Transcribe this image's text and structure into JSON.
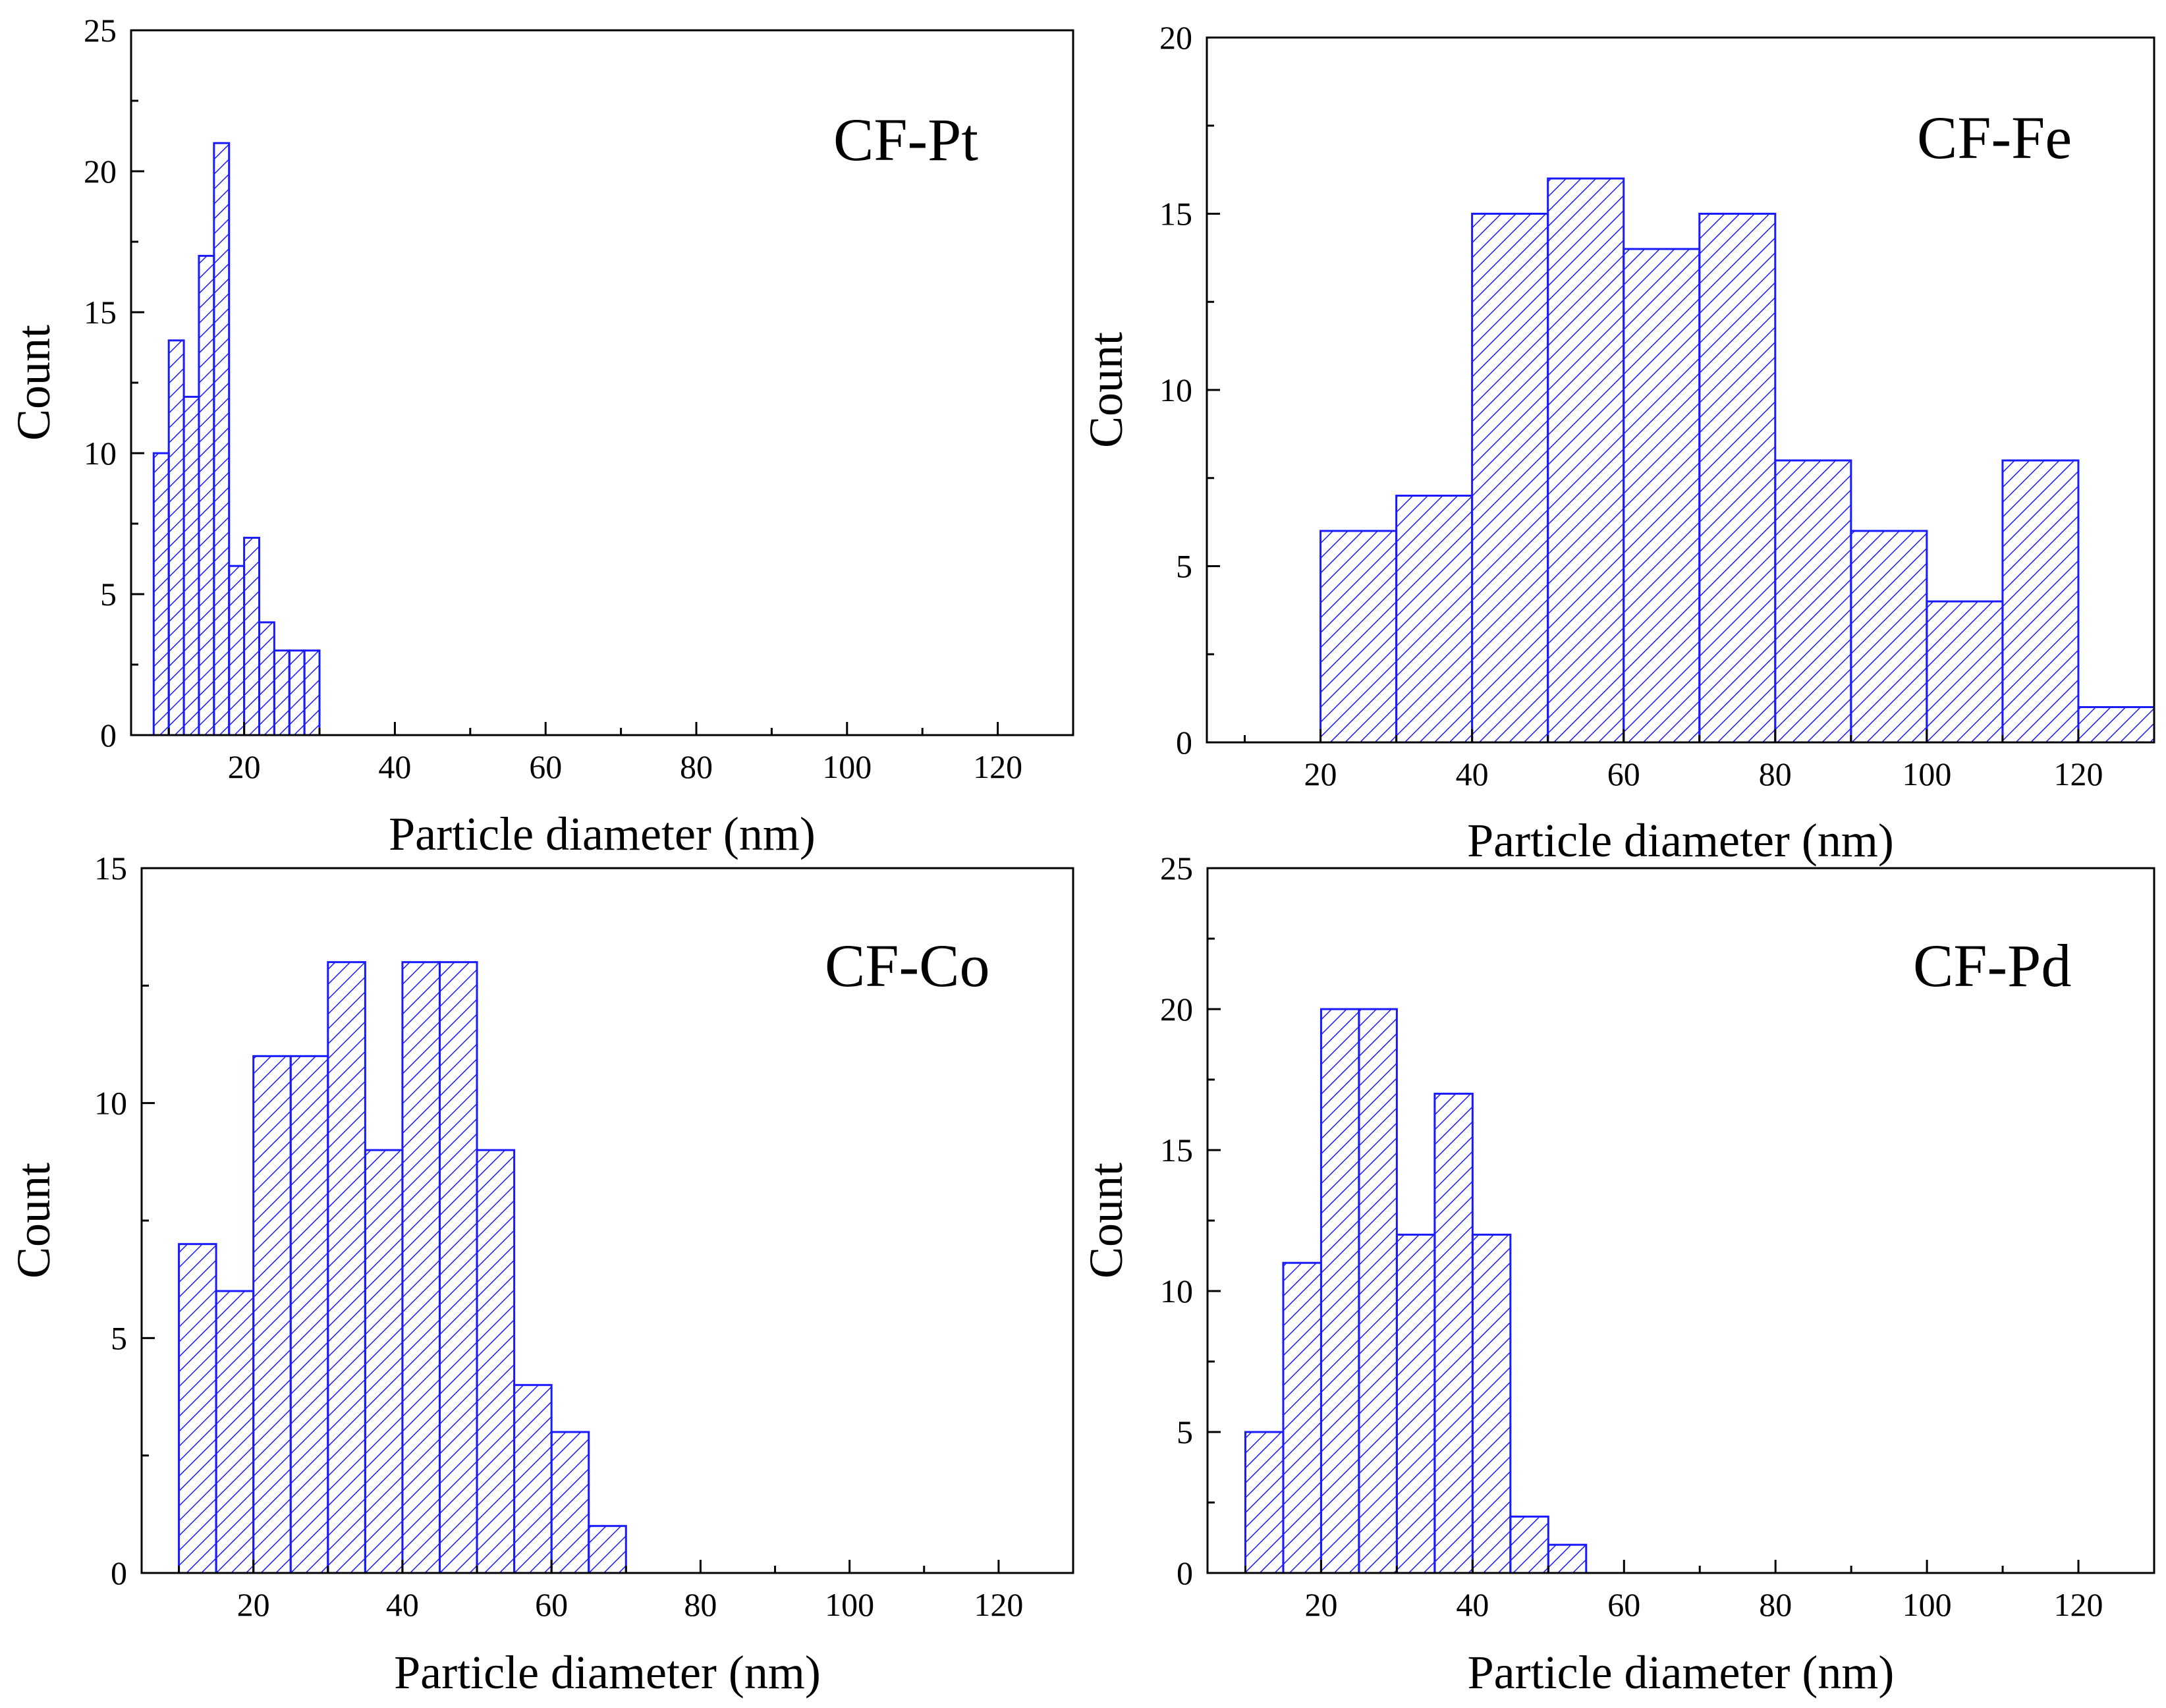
{
  "colors": {
    "bar_stroke": "#1a1aff",
    "hatch": "#1a1aff",
    "axis": "#000000",
    "background": "#ffffff"
  },
  "chart_data": [
    {
      "id": "cf-pt",
      "type": "bar",
      "title": "CF-Pt",
      "xlabel": "Particle diameter (nm)",
      "ylabel": "Count",
      "xlim": [
        5,
        130
      ],
      "ylim": [
        0,
        25
      ],
      "xticks": [
        20,
        40,
        60,
        80,
        100,
        120
      ],
      "xtick_labels": [
        "20",
        "40",
        "60",
        "80",
        "100",
        "120"
      ],
      "yticks": [
        0,
        5,
        10,
        15,
        20,
        25
      ],
      "ytick_labels": [
        "0",
        "5",
        "10",
        "15",
        "20",
        "25"
      ],
      "bins": [
        [
          8,
          10
        ],
        [
          10,
          12
        ],
        [
          12,
          14
        ],
        [
          14,
          16
        ],
        [
          16,
          18
        ],
        [
          18,
          20
        ],
        [
          20,
          22
        ],
        [
          22,
          24
        ],
        [
          24,
          26
        ],
        [
          26,
          28
        ],
        [
          28,
          30
        ]
      ],
      "values": [
        10,
        14,
        12,
        17,
        21,
        6,
        7,
        4,
        3,
        3,
        3
      ]
    },
    {
      "id": "cf-fe",
      "type": "bar",
      "title": "CF-Fe",
      "xlabel": "Particle diameter (nm)",
      "ylabel": "Count",
      "xlim": [
        5,
        130
      ],
      "ylim": [
        0,
        20
      ],
      "xticks": [
        20,
        40,
        60,
        80,
        100,
        120
      ],
      "xtick_labels": [
        "20",
        "40",
        "60",
        "80",
        "100",
        "120"
      ],
      "yticks": [
        0,
        5,
        10,
        15,
        20
      ],
      "ytick_labels": [
        "0",
        "5",
        "10",
        "15",
        "20"
      ],
      "bins": [
        [
          20,
          30
        ],
        [
          30,
          40
        ],
        [
          40,
          50
        ],
        [
          50,
          60
        ],
        [
          60,
          70
        ],
        [
          70,
          80
        ],
        [
          80,
          90
        ],
        [
          90,
          100
        ],
        [
          100,
          110
        ],
        [
          110,
          120
        ],
        [
          120,
          130
        ]
      ],
      "values": [
        6,
        7,
        15,
        16,
        14,
        15,
        8,
        6,
        4,
        8,
        1
      ]
    },
    {
      "id": "cf-co",
      "type": "bar",
      "title": "CF-Co",
      "xlabel": "Particle diameter (nm)",
      "ylabel": "Count",
      "xlim": [
        5,
        130
      ],
      "ylim": [
        0,
        15
      ],
      "xticks": [
        20,
        40,
        60,
        80,
        100,
        120
      ],
      "xtick_labels": [
        "20",
        "40",
        "60",
        "80",
        "100",
        "120"
      ],
      "yticks": [
        0,
        5,
        10,
        15
      ],
      "ytick_labels": [
        "0",
        "5",
        "10",
        "15"
      ],
      "bins": [
        [
          10,
          15
        ],
        [
          15,
          20
        ],
        [
          20,
          25
        ],
        [
          25,
          30
        ],
        [
          30,
          35
        ],
        [
          35,
          40
        ],
        [
          40,
          45
        ],
        [
          45,
          50
        ],
        [
          50,
          55
        ],
        [
          55,
          60
        ],
        [
          60,
          65
        ],
        [
          65,
          70
        ]
      ],
      "values": [
        7,
        6,
        11,
        11,
        13,
        9,
        13,
        13,
        9,
        4,
        3,
        1
      ]
    },
    {
      "id": "cf-pd",
      "type": "bar",
      "title": "CF-Pd",
      "xlabel": "Particle diameter (nm)",
      "ylabel": "Count",
      "xlim": [
        5,
        130
      ],
      "ylim": [
        0,
        25
      ],
      "xticks": [
        20,
        40,
        60,
        80,
        100,
        120
      ],
      "xtick_labels": [
        "20",
        "40",
        "60",
        "80",
        "100",
        "120"
      ],
      "yticks": [
        0,
        5,
        10,
        15,
        20,
        25
      ],
      "ytick_labels": [
        "0",
        "5",
        "10",
        "15",
        "20",
        "25"
      ],
      "bins": [
        [
          10,
          15
        ],
        [
          15,
          20
        ],
        [
          20,
          25
        ],
        [
          25,
          30
        ],
        [
          30,
          35
        ],
        [
          35,
          40
        ],
        [
          40,
          45
        ],
        [
          45,
          50
        ],
        [
          50,
          55
        ]
      ],
      "values": [
        5,
        11,
        20,
        20,
        12,
        17,
        12,
        2,
        1
      ]
    }
  ]
}
